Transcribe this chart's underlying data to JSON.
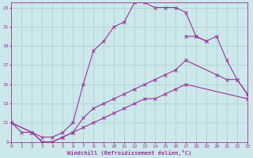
{
  "xlabel": "Windchill (Refroidissement éolien,°C)",
  "bg_color": "#cce8ea",
  "line_color": "#993399",
  "grid_color": "#aacccc",
  "xmin": 0,
  "xmax": 23,
  "ymin": 9,
  "ymax": 23.5,
  "xticks": [
    0,
    1,
    2,
    3,
    4,
    5,
    6,
    7,
    8,
    9,
    10,
    11,
    12,
    13,
    14,
    15,
    16,
    17,
    18,
    19,
    20,
    21,
    22,
    23
  ],
  "yticks": [
    9,
    11,
    13,
    15,
    17,
    19,
    21,
    23
  ],
  "series1": {
    "x": [
      0,
      1,
      2,
      3,
      4,
      5,
      6,
      7,
      8,
      9,
      10,
      11,
      12,
      13,
      14,
      15,
      16,
      17,
      18,
      19
    ],
    "y": [
      11,
      10,
      10,
      9.5,
      9.5,
      10,
      11,
      15,
      18.5,
      19.5,
      21,
      21.5,
      23.5,
      23.5,
      23,
      23,
      23,
      22.5,
      20,
      19.5
    ]
  },
  "series2": {
    "x": [
      17,
      18,
      19,
      20,
      21,
      22,
      23
    ],
    "y": [
      20,
      20,
      19.5,
      20,
      17.5,
      15.5,
      14
    ]
  },
  "series3": {
    "x": [
      0,
      2,
      3,
      4,
      5,
      6,
      7,
      8,
      9,
      10,
      11,
      12,
      13,
      14,
      15,
      16,
      17,
      20,
      21,
      22,
      23
    ],
    "y": [
      11,
      10,
      9,
      9,
      9.5,
      10,
      11.5,
      12.5,
      13,
      13.5,
      14,
      14.5,
      15,
      15.5,
      16,
      16.5,
      17.5,
      16,
      15.5,
      15.5,
      14
    ]
  },
  "series4": {
    "x": [
      0,
      2,
      3,
      4,
      5,
      6,
      7,
      8,
      9,
      10,
      11,
      12,
      13,
      14,
      15,
      16,
      17,
      23
    ],
    "y": [
      11,
      10,
      9,
      9,
      9.5,
      10,
      10.5,
      11,
      11.5,
      12,
      12.5,
      13,
      13.5,
      13.5,
      14,
      14.5,
      15,
      13.5
    ]
  }
}
